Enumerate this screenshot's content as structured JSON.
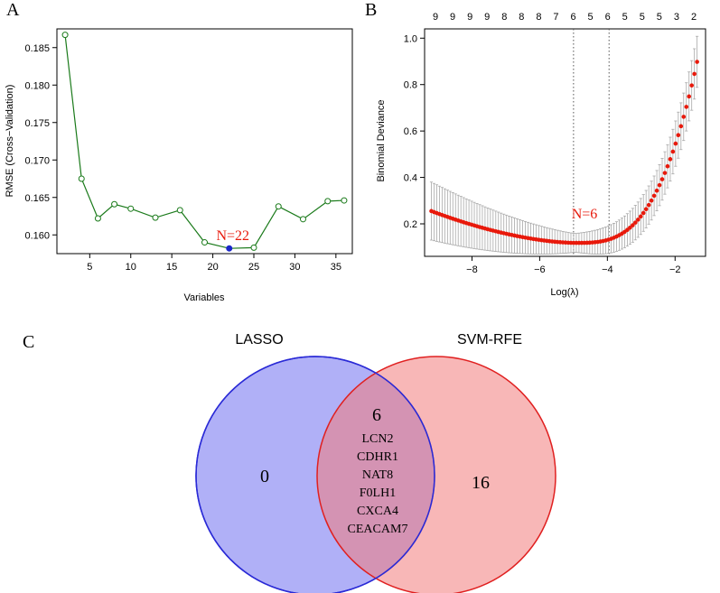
{
  "panel_labels": {
    "a": "A",
    "b": "B",
    "c": "C"
  },
  "chart_data": [
    {
      "id": "A",
      "type": "line",
      "xlabel": "Variables",
      "ylabel": "RMSE (Cross−Validation)",
      "xlim": [
        1,
        37
      ],
      "ylim": [
        0.1575,
        0.1875
      ],
      "xticks": [
        5,
        10,
        15,
        20,
        25,
        30,
        35
      ],
      "yticks": [
        0.16,
        0.165,
        0.17,
        0.175,
        0.18,
        0.185
      ],
      "ytick_labels": [
        "0.160",
        "0.165",
        "0.170",
        "0.175",
        "0.180",
        "0.185"
      ],
      "x": [
        2,
        4,
        6,
        8,
        10,
        13,
        16,
        19,
        22,
        25,
        28,
        31,
        34,
        36
      ],
      "y": [
        0.1867,
        0.1675,
        0.1622,
        0.1641,
        0.1635,
        0.1623,
        0.1633,
        0.159,
        0.1582,
        0.1583,
        0.1638,
        0.1621,
        0.1645,
        0.1646
      ],
      "line_color": "#1a7a1a",
      "highlight": {
        "x": 22,
        "y": 0.1582,
        "color": "#1a27c9",
        "label": "N=22"
      }
    },
    {
      "id": "B",
      "type": "scatter",
      "xlabel": "Log(λ)",
      "ylabel": "Binomial Deviance",
      "xlim": [
        -9.4,
        -1.1
      ],
      "ylim": [
        0.06,
        1.04
      ],
      "xticks": [
        -8,
        -6,
        -4,
        -2
      ],
      "xtick_labels": [
        "−8",
        "−6",
        "−4",
        "−2"
      ],
      "yticks": [
        0.2,
        0.4,
        0.6,
        0.8,
        1.0
      ],
      "ytick_labels": [
        "0.2",
        "0.4",
        "0.6",
        "0.8",
        "1.0"
      ],
      "top_counts": [
        "9",
        "9",
        "9",
        "9",
        "8",
        "8",
        "8",
        "7",
        "6",
        "5",
        "6",
        "5",
        "5",
        "5",
        "3",
        "2"
      ],
      "vlines": [
        -5.0,
        -3.95
      ],
      "curve": {
        "x_start": -9.2,
        "x_end": -1.35,
        "n_points": 100,
        "y_min": 0.118,
        "x_min": -4.95,
        "y_left": 0.255
      },
      "point_color": "#e8190b",
      "errorbar_color": "#a8a8a8",
      "annotation": "N=6"
    },
    {
      "id": "C",
      "type": "venn",
      "sets": [
        {
          "name": "LASSO",
          "unique_count": "0",
          "color": "#6f6ff1"
        },
        {
          "name": "SVM-RFE",
          "unique_count": "16",
          "color": "#f27b7b"
        }
      ],
      "intersection": {
        "count": "6",
        "genes": [
          "LCN2",
          "CDHR1",
          "NAT8",
          "F0LH1",
          "CXCA4",
          "CEACAM7"
        ]
      }
    }
  ]
}
